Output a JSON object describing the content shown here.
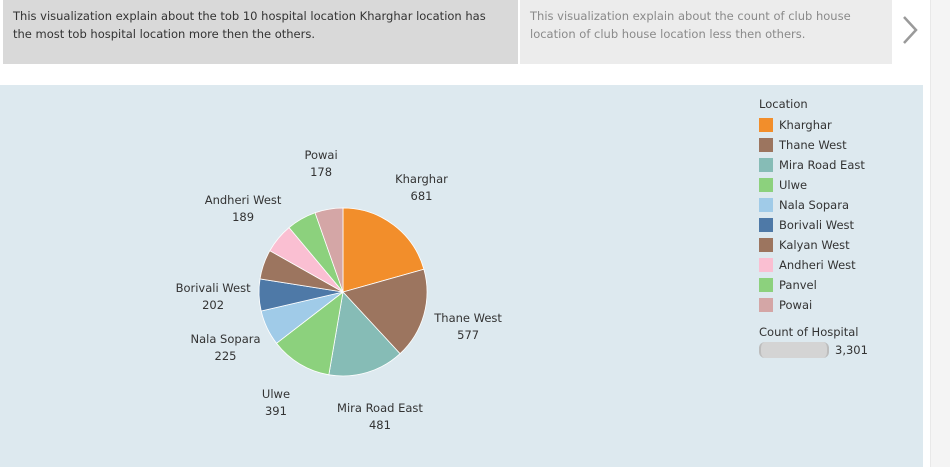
{
  "captions": {
    "active": "This visualization explain about the tob 10 hospital location Kharghar location has the most tob hospital location more then the others.",
    "next": "This visualization explain about the count of club house location of club house location less then others."
  },
  "icons": {
    "next": "chevron-right-icon"
  },
  "chart_data": {
    "type": "pie",
    "categories": [
      "Kharghar",
      "Thane West",
      "Mira Road East",
      "Ulwe",
      "Nala Sopara",
      "Borivali West",
      "Kalyan West",
      "Andheri West",
      "Panvel",
      "Powai"
    ],
    "values": [
      681,
      577,
      481,
      391,
      225,
      202,
      null,
      189,
      null,
      178
    ],
    "colors": [
      "#f28e2b",
      "#9c755f",
      "#86bcb6",
      "#8cd17d",
      "#a0cbe8",
      "#4e79a7",
      "#9c755f",
      "#fabfd2",
      "#8cd17d",
      "#d4a6a6"
    ],
    "legend_title": "Location",
    "legend_position": "right",
    "size_legend_title": "Count of Hospital",
    "size_legend_value": "3,301"
  }
}
